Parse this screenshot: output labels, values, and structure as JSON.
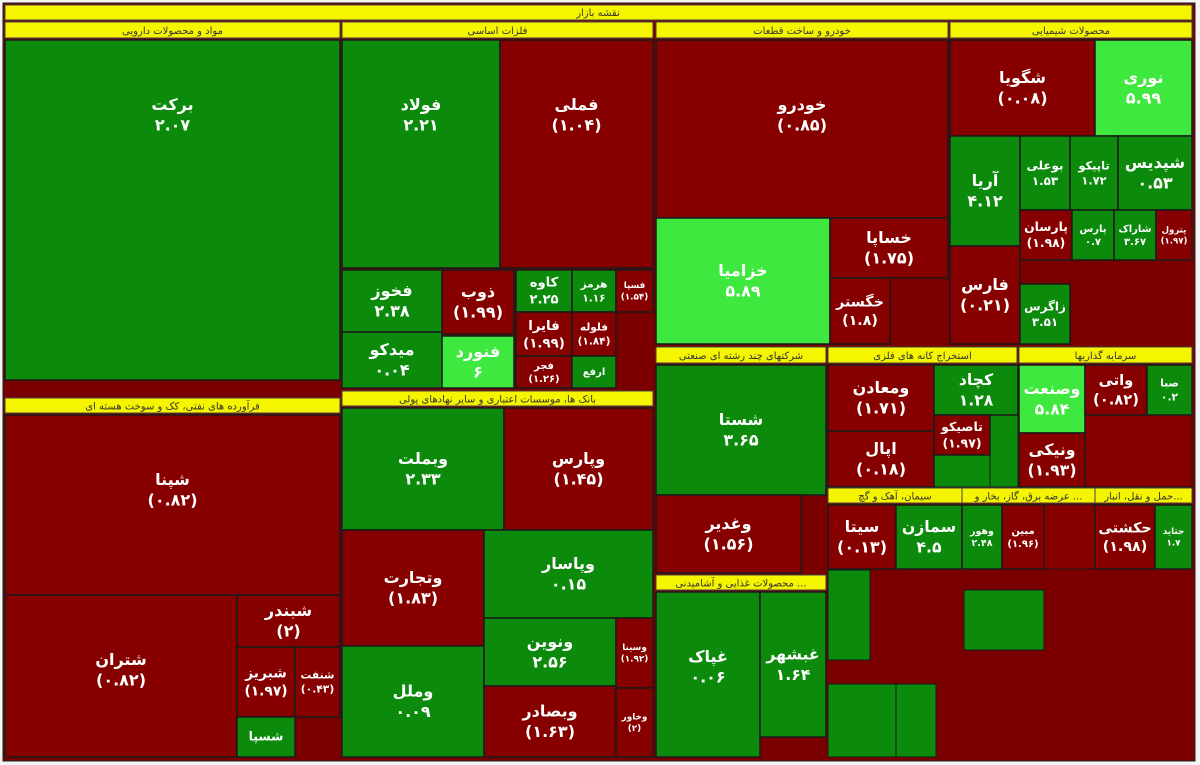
{
  "title": "نقشه بازار",
  "sectors": [
    {
      "name": "مواد و محصولات دارویی",
      "tiles": [
        {
          "name": "برکت",
          "change": "۲.۰۷"
        }
      ]
    },
    {
      "name": "فلزات اساسی",
      "tiles": [
        {
          "name": "فولاد",
          "change": "۲.۲۱"
        },
        {
          "name": "فملی",
          "change": "(۱.۰۴)"
        },
        {
          "name": "فخوز",
          "change": "۲.۳۸"
        },
        {
          "name": "میدکو",
          "change": "۰.۰۴"
        },
        {
          "name": "ذوب",
          "change": "(۱.۹۹)"
        },
        {
          "name": "فنورد",
          "change": "۶"
        },
        {
          "name": "کاوه",
          "change": "۲.۲۵"
        },
        {
          "name": "هرمز",
          "change": "۱.۱۶"
        },
        {
          "name": "فسپا",
          "change": "(۱.۵۴)"
        },
        {
          "name": "فایرا",
          "change": "(۱.۹۹)"
        },
        {
          "name": "فلوله",
          "change": "(۱.۸۴)"
        },
        {
          "name": "فجر",
          "change": "(۱.۲۶)"
        },
        {
          "name": "ارفع"
        }
      ]
    },
    {
      "name": "خودرو و ساخت قطعات",
      "tiles": [
        {
          "name": "خودرو",
          "change": "(۰.۸۵)"
        },
        {
          "name": "خزامیا",
          "change": "۵.۸۹"
        },
        {
          "name": "خساپا",
          "change": "(۱.۷۵)"
        },
        {
          "name": "خگستر",
          "change": "(۱.۸)"
        }
      ]
    },
    {
      "name": "محصولات شیمیایی",
      "tiles": [
        {
          "name": "شگویا",
          "change": "(۰.۰۸)"
        },
        {
          "name": "نوری",
          "change": "۵.۹۹"
        },
        {
          "name": "آریا",
          "change": "۴.۱۲"
        },
        {
          "name": "بوعلی",
          "change": "۱.۵۳"
        },
        {
          "name": "تاپیکو",
          "change": "۱.۷۲"
        },
        {
          "name": "شپدیس",
          "change": "۰.۵۳"
        },
        {
          "name": "فارس",
          "change": "(۰.۲۱)"
        },
        {
          "name": "پارسان",
          "change": "(۱.۹۸)"
        },
        {
          "name": "پارس",
          "change": "۰.۷"
        },
        {
          "name": "شاراک",
          "change": "۳.۶۷"
        },
        {
          "name": "پترول",
          "change": "(۱.۹۷)"
        },
        {
          "name": "زاگرس",
          "change": "۳.۵۱"
        }
      ]
    },
    {
      "name": "فرآورده های نفتی، کک و سوخت هسته ای",
      "tiles": [
        {
          "name": "شپنا",
          "change": "(۰.۸۲)"
        },
        {
          "name": "شتران",
          "change": "(۰.۸۲)"
        },
        {
          "name": "شبندر",
          "change": "(۲)"
        },
        {
          "name": "شبریز",
          "change": "(۱.۹۷)"
        },
        {
          "name": "شنفت",
          "change": "(۰.۴۳)"
        },
        {
          "name": "شسپا"
        }
      ]
    },
    {
      "name": "بانک ها، موسسات اعتباری و سایر نهادهای پولی",
      "tiles": [
        {
          "name": "وبملت",
          "change": "۲.۳۳"
        },
        {
          "name": "وپارس",
          "change": "(۱.۴۵)"
        },
        {
          "name": "وتجارت",
          "change": "(۱.۸۳)"
        },
        {
          "name": "وپاسار",
          "change": "۰.۱۵"
        },
        {
          "name": "وملل",
          "change": "۰.۰۹"
        },
        {
          "name": "ونوین",
          "change": "۲.۵۶"
        },
        {
          "name": "وبصادر",
          "change": "(۱.۶۳)"
        },
        {
          "name": "وسینا",
          "change": "(۱.۹۲)"
        },
        {
          "name": "وخاور",
          "change": "(۲)"
        }
      ]
    },
    {
      "name": "شرکتهای چند رشته ای صنعتی",
      "tiles": [
        {
          "name": "شستا",
          "change": "۳.۶۵"
        },
        {
          "name": "وغدیر",
          "change": "(۱.۵۶)"
        }
      ]
    },
    {
      "name": "استخراج کانه های فلزی",
      "tiles": [
        {
          "name": "ومعادن",
          "change": "(۱.۷۱)"
        },
        {
          "name": "کچاد",
          "change": "۱.۲۸"
        },
        {
          "name": "اپال",
          "change": "(۰.۱۸)"
        },
        {
          "name": "تاصیکو",
          "change": "(۱.۹۷)"
        }
      ]
    },
    {
      "name": "سرمایه گذاریها",
      "tiles": [
        {
          "name": "وصنعت",
          "change": "۵.۸۴"
        },
        {
          "name": "واتی",
          "change": "(۰.۸۲)"
        },
        {
          "name": "صبا",
          "change": "۰.۲"
        },
        {
          "name": "ونیکی",
          "change": "(۱.۹۳)"
        }
      ]
    },
    {
      "name": "سیمان، آهک و گچ",
      "tiles": [
        {
          "name": "سیتا",
          "change": "(۰.۱۳)"
        },
        {
          "name": "سمازن",
          "change": "۴.۵"
        }
      ]
    },
    {
      "name": "عرضه برق، گاز، بخار و ...",
      "tiles": [
        {
          "name": "وهور",
          "change": "۲.۴۸"
        },
        {
          "name": "مبین",
          "change": "(۱.۹۶)"
        }
      ]
    },
    {
      "name": "حمل و نقل، انبار...",
      "tiles": [
        {
          "name": "حکشتی",
          "change": "(۱.۹۸)"
        },
        {
          "name": "حتاید",
          "change": "۱.۷"
        }
      ]
    },
    {
      "name": "محصولات غذایی و آشامیدنی ...",
      "tiles": [
        {
          "name": "غپاک",
          "change": "۰.۰۶"
        },
        {
          "name": "غبشهر",
          "change": "۱.۶۴"
        }
      ]
    }
  ]
}
